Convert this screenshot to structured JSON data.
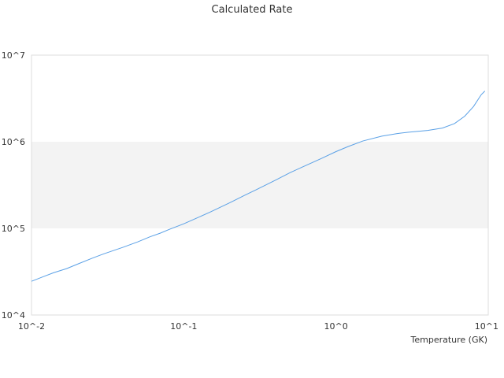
{
  "chart_data": {
    "type": "line",
    "title": "Calculated Rate",
    "xlabel": "Temperature (GK)",
    "ylabel": "",
    "x_scale": "log",
    "y_scale": "log",
    "xlim": [
      0.01,
      10
    ],
    "ylim": [
      10000,
      10000000
    ],
    "x_ticks": [
      {
        "value": 0.01,
        "label": "10^-2"
      },
      {
        "value": 0.1,
        "label": "10^-1"
      },
      {
        "value": 1,
        "label": "10^0"
      },
      {
        "value": 10,
        "label": "10^1"
      }
    ],
    "y_ticks": [
      {
        "value": 10000,
        "label": "10^4"
      },
      {
        "value": 100000,
        "label": "10^5"
      },
      {
        "value": 1000000,
        "label": "10^6"
      },
      {
        "value": 10000000,
        "label": "10^7"
      }
    ],
    "grid": false,
    "legend": "none",
    "shaded_bands": [
      {
        "y_from": 100000,
        "y_to": 1000000,
        "color": "#f3f3f3"
      }
    ],
    "colors": {
      "line": "#5aa0e6",
      "plot_border": "#dddddd",
      "text": "#333333"
    },
    "series": [
      {
        "x": [
          0.01,
          0.012,
          0.014,
          0.017,
          0.02,
          0.025,
          0.03,
          0.04,
          0.05,
          0.06,
          0.07,
          0.08,
          0.1,
          0.12,
          0.15,
          0.2,
          0.25,
          0.3,
          0.4,
          0.5,
          0.6,
          0.8,
          1.0,
          1.2,
          1.5,
          2.0,
          2.5,
          3.0,
          4.0,
          5.0,
          6.0,
          7.0,
          8.0,
          9.0,
          9.5
        ],
        "y": [
          24500,
          27800,
          30800,
          34300,
          38600,
          45200,
          51000,
          60600,
          70000,
          80000,
          88000,
          97000,
          113000,
          130000,
          155000,
          197000,
          240000,
          280000,
          360000,
          440000,
          510000,
          640000,
          770000,
          880000,
          1020000,
          1160000,
          1240000,
          1290000,
          1350000,
          1440000,
          1620000,
          1970000,
          2550000,
          3500000,
          3850000
        ]
      }
    ]
  }
}
